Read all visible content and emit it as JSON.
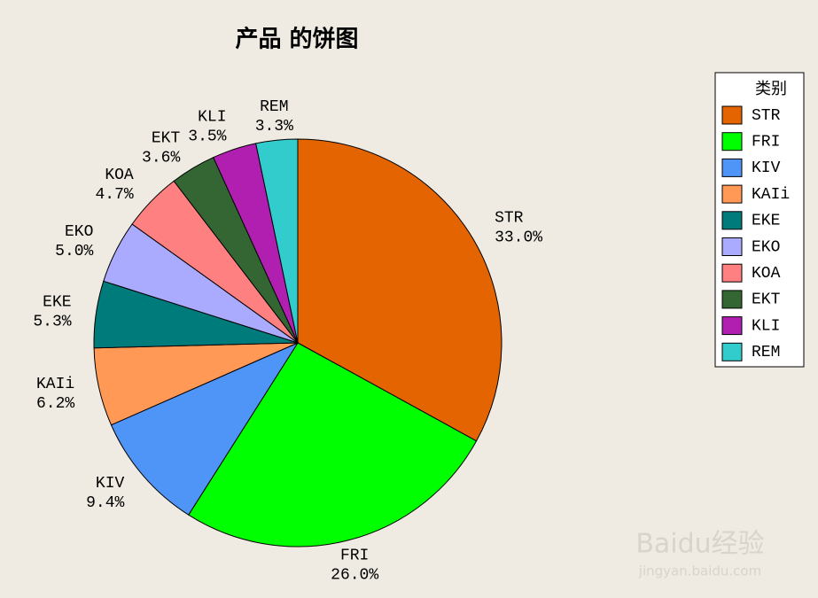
{
  "chart_data": {
    "type": "pie",
    "title": "产品 的饼图",
    "legend_title": "类别",
    "categories": [
      "STR",
      "FRI",
      "KIV",
      "KAIi",
      "EKE",
      "EKO",
      "KOA",
      "EKT",
      "KLI",
      "REM"
    ],
    "values": [
      33.0,
      26.0,
      9.4,
      6.2,
      5.3,
      5.0,
      4.7,
      3.6,
      3.5,
      3.3
    ],
    "value_labels": [
      "33.0%",
      "26.0%",
      "9.4%",
      "6.2%",
      "5.3%",
      "5.0%",
      "4.7%",
      "3.6%",
      "3.5%",
      "3.3%"
    ],
    "colors": [
      "#e36400",
      "#00ff00",
      "#4f94f7",
      "#ff9955",
      "#007b7b",
      "#aaaaff",
      "#ff8080",
      "#336633",
      "#b11fb1",
      "#33cccc"
    ],
    "legend_position": "right"
  },
  "watermark": {
    "brand": "Baidu经验",
    "url": "jingyan.baidu.com"
  }
}
